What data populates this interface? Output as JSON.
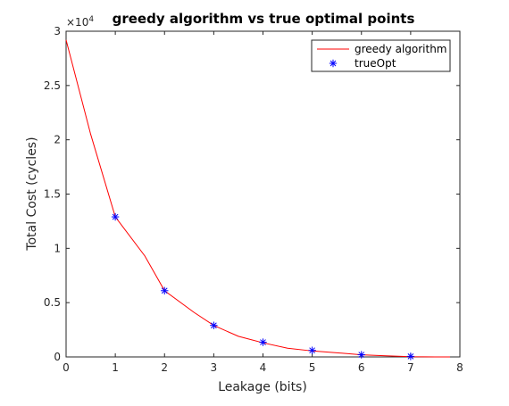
{
  "chart_data": {
    "type": "line",
    "title": "greedy algorithm vs true optimal points",
    "xlabel": "Leakage (bits)",
    "ylabel": "Total Cost (cycles)",
    "xlim": [
      0,
      8
    ],
    "ylim": [
      0,
      30000
    ],
    "x_ticks": [
      0,
      1,
      2,
      3,
      4,
      5,
      6,
      7,
      8
    ],
    "x_tick_labels": [
      "0",
      "1",
      "2",
      "3",
      "4",
      "5",
      "6",
      "7",
      "8"
    ],
    "y_ticks": [
      0,
      5000,
      10000,
      15000,
      20000,
      25000,
      30000
    ],
    "y_tick_labels": [
      "0",
      "0.5",
      "1",
      "1.5",
      "2",
      "2.5",
      "3"
    ],
    "y_exponent_label": "×10",
    "y_exponent_power": "4",
    "grid": false,
    "legend_position": "top-right",
    "series": [
      {
        "name": "greedy algorithm",
        "style": "line",
        "color": "#ff0000",
        "x": [
          0,
          0.5,
          1,
          1.6,
          2,
          2.6,
          3,
          3.5,
          4,
          4.5,
          5,
          5.5,
          6,
          6.5,
          7,
          7.5,
          7.8
        ],
        "y": [
          29200,
          20500,
          12900,
          9300,
          6100,
          4100,
          2900,
          1900,
          1300,
          800,
          550,
          380,
          200,
          100,
          20,
          0,
          0
        ]
      },
      {
        "name": "trueOpt",
        "style": "marker-asterisk",
        "color": "#0000ff",
        "x": [
          1,
          2,
          3,
          4,
          5,
          6,
          7
        ],
        "y": [
          12900,
          6100,
          2900,
          1350,
          600,
          200,
          50
        ]
      }
    ]
  }
}
